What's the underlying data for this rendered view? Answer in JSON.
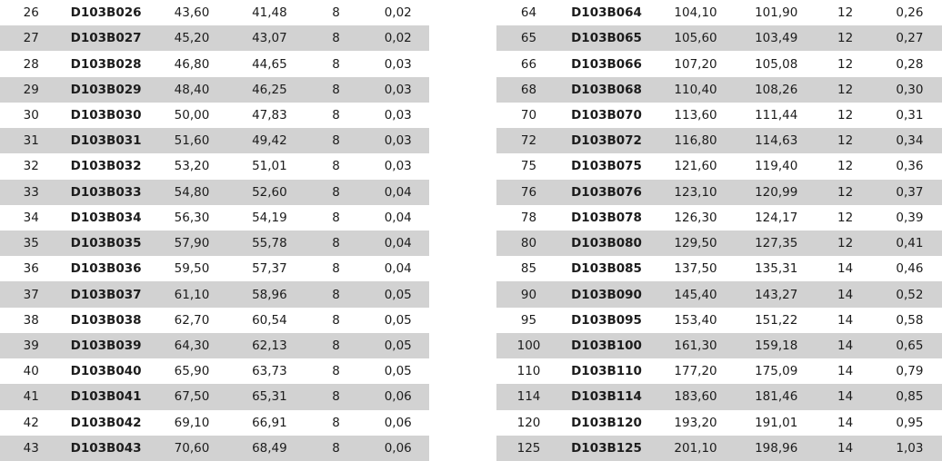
{
  "page": {
    "background": "#ffffff",
    "stripe_color": "#d2d2d2",
    "text_color": "#1c1c1c"
  },
  "left_table": {
    "rows": [
      [
        "26",
        "D103B026",
        "43,60",
        "41,48",
        "8",
        "0,02"
      ],
      [
        "27",
        "D103B027",
        "45,20",
        "43,07",
        "8",
        "0,02"
      ],
      [
        "28",
        "D103B028",
        "46,80",
        "44,65",
        "8",
        "0,03"
      ],
      [
        "29",
        "D103B029",
        "48,40",
        "46,25",
        "8",
        "0,03"
      ],
      [
        "30",
        "D103B030",
        "50,00",
        "47,83",
        "8",
        "0,03"
      ],
      [
        "31",
        "D103B031",
        "51,60",
        "49,42",
        "8",
        "0,03"
      ],
      [
        "32",
        "D103B032",
        "53,20",
        "51,01",
        "8",
        "0,03"
      ],
      [
        "33",
        "D103B033",
        "54,80",
        "52,60",
        "8",
        "0,04"
      ],
      [
        "34",
        "D103B034",
        "56,30",
        "54,19",
        "8",
        "0,04"
      ],
      [
        "35",
        "D103B035",
        "57,90",
        "55,78",
        "8",
        "0,04"
      ],
      [
        "36",
        "D103B036",
        "59,50",
        "57,37",
        "8",
        "0,04"
      ],
      [
        "37",
        "D103B037",
        "61,10",
        "58,96",
        "8",
        "0,05"
      ],
      [
        "38",
        "D103B038",
        "62,70",
        "60,54",
        "8",
        "0,05"
      ],
      [
        "39",
        "D103B039",
        "64,30",
        "62,13",
        "8",
        "0,05"
      ],
      [
        "40",
        "D103B040",
        "65,90",
        "63,73",
        "8",
        "0,05"
      ],
      [
        "41",
        "D103B041",
        "67,50",
        "65,31",
        "8",
        "0,06"
      ],
      [
        "42",
        "D103B042",
        "69,10",
        "66,91",
        "8",
        "0,06"
      ],
      [
        "43",
        "D103B043",
        "70,60",
        "68,49",
        "8",
        "0,06"
      ]
    ]
  },
  "right_table": {
    "rows": [
      [
        "64",
        "D103B064",
        "104,10",
        "101,90",
        "12",
        "0,26"
      ],
      [
        "65",
        "D103B065",
        "105,60",
        "103,49",
        "12",
        "0,27"
      ],
      [
        "66",
        "D103B066",
        "107,20",
        "105,08",
        "12",
        "0,28"
      ],
      [
        "68",
        "D103B068",
        "110,40",
        "108,26",
        "12",
        "0,30"
      ],
      [
        "70",
        "D103B070",
        "113,60",
        "111,44",
        "12",
        "0,31"
      ],
      [
        "72",
        "D103B072",
        "116,80",
        "114,63",
        "12",
        "0,34"
      ],
      [
        "75",
        "D103B075",
        "121,60",
        "119,40",
        "12",
        "0,36"
      ],
      [
        "76",
        "D103B076",
        "123,10",
        "120,99",
        "12",
        "0,37"
      ],
      [
        "78",
        "D103B078",
        "126,30",
        "124,17",
        "12",
        "0,39"
      ],
      [
        "80",
        "D103B080",
        "129,50",
        "127,35",
        "12",
        "0,41"
      ],
      [
        "85",
        "D103B085",
        "137,50",
        "135,31",
        "14",
        "0,46"
      ],
      [
        "90",
        "D103B090",
        "145,40",
        "143,27",
        "14",
        "0,52"
      ],
      [
        "95",
        "D103B095",
        "153,40",
        "151,22",
        "14",
        "0,58"
      ],
      [
        "100",
        "D103B100",
        "161,30",
        "159,18",
        "14",
        "0,65"
      ],
      [
        "110",
        "D103B110",
        "177,20",
        "175,09",
        "14",
        "0,79"
      ],
      [
        "114",
        "D103B114",
        "183,60",
        "181,46",
        "14",
        "0,85"
      ],
      [
        "120",
        "D103B120",
        "193,20",
        "191,01",
        "14",
        "0,95"
      ],
      [
        "125",
        "D103B125",
        "201,10",
        "198,96",
        "14",
        "1,03"
      ]
    ]
  }
}
